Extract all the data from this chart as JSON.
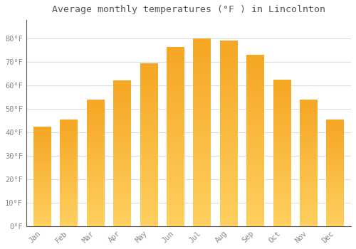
{
  "title": "Average monthly temperatures (°F ) in Lincolnton",
  "months": [
    "Jan",
    "Feb",
    "Mar",
    "Apr",
    "May",
    "Jun",
    "Jul",
    "Aug",
    "Sep",
    "Oct",
    "Nov",
    "Dec"
  ],
  "values": [
    42.5,
    45.5,
    54,
    62,
    69.5,
    76.5,
    80,
    79,
    73,
    62.5,
    54,
    45.5
  ],
  "bar_color_top": "#F5A623",
  "bar_color_bottom": "#FFD060",
  "background_color": "#FFFFFF",
  "grid_color": "#DDDDDD",
  "tick_label_color": "#888888",
  "title_color": "#555555",
  "ylim": [
    0,
    88
  ],
  "yticks": [
    0,
    10,
    20,
    30,
    40,
    50,
    60,
    70,
    80
  ],
  "ytick_labels": [
    "0°F",
    "10°F",
    "20°F",
    "30°F",
    "40°F",
    "50°F",
    "60°F",
    "70°F",
    "80°F"
  ]
}
